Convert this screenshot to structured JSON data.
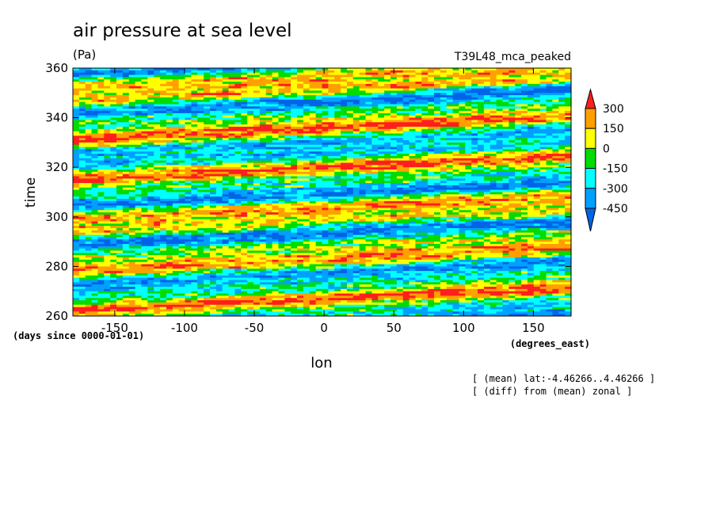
{
  "chart_data": {
    "type": "heatmap",
    "title": "air pressure at sea level",
    "units": "(Pa)",
    "run_label": "T39L48_mca_peaked",
    "xlabel": "lon",
    "x_units": "(degrees_east)",
    "ylabel": "time",
    "y_units": "(days since 0000-01-01)",
    "xlim": [
      -180,
      177
    ],
    "ylim": [
      260,
      360
    ],
    "x_ticks": [
      -150,
      -100,
      -50,
      0,
      50,
      100,
      150
    ],
    "y_ticks": [
      260,
      280,
      300,
      320,
      340,
      360
    ],
    "colorbar": {
      "labels": [
        300,
        150,
        0,
        -150,
        -300,
        -450
      ],
      "colors": [
        "#0064e6",
        "#00a0ff",
        "#00ffff",
        "#00dc00",
        "#ffff00",
        "#ffa000",
        "#ff1e1e"
      ]
    },
    "notes": [
      "[ (mean) lat:-4.46266..4.46266 ]",
      "[ (diff) from (mean) zonal ]"
    ]
  },
  "x_tick_labels": [
    "-150",
    "-100",
    "-50",
    "0",
    "50",
    "100",
    "150"
  ],
  "y_tick_labels": [
    "260",
    "280",
    "300",
    "320",
    "340",
    "360"
  ],
  "colorbar_tick_labels": [
    "300",
    "150",
    "0",
    "-150",
    "-300",
    "-450"
  ]
}
